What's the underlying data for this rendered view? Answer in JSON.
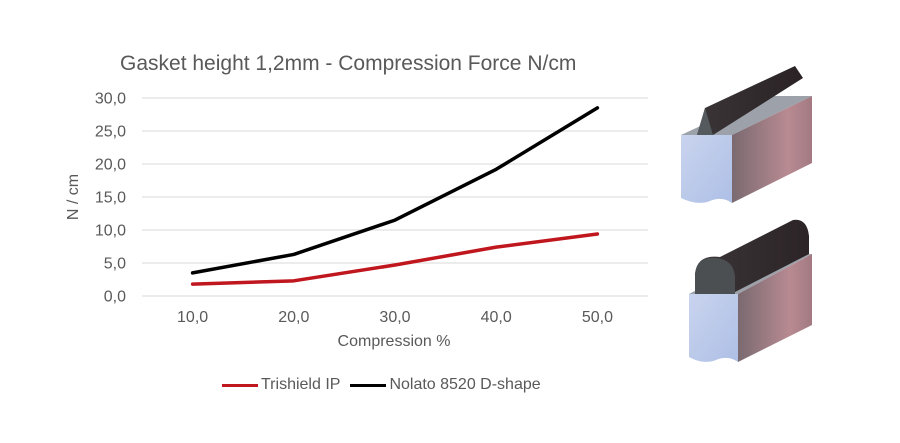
{
  "chart_data": {
    "type": "line",
    "title": "Gasket height 1,2mm - Compression Force N/cm",
    "xlabel": "Compression %",
    "ylabel": "N / cm",
    "categories": [
      "10,0",
      "20,0",
      "30,0",
      "40,0",
      "50,0"
    ],
    "x": [
      10,
      20,
      30,
      40,
      50
    ],
    "yticks": [
      "0,0",
      "5,0",
      "10,0",
      "15,0",
      "20,0",
      "25,0",
      "30,0"
    ],
    "ylim": [
      0,
      30
    ],
    "grid": true,
    "legend_position": "bottom",
    "series": [
      {
        "name": "Trishield IP",
        "color": "#c0161e",
        "values": [
          1.8,
          2.3,
          4.7,
          7.4,
          9.4
        ]
      },
      {
        "name": "Nolato 8520 D-shape",
        "color": "#000000",
        "values": [
          3.5,
          6.3,
          11.5,
          19.2,
          28.5
        ]
      }
    ]
  },
  "illustrations": [
    {
      "label": "trishield-ip-profile",
      "shape": "triangular ridge"
    },
    {
      "label": "d-shape-profile",
      "shape": "rounded D profile"
    }
  ]
}
